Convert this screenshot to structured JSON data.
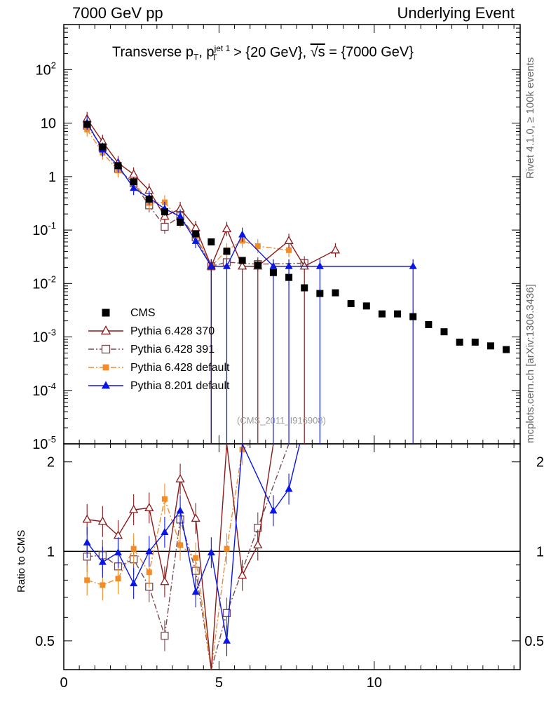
{
  "header": {
    "left": "7000 GeV pp",
    "right": "Underlying Event"
  },
  "side_labels": {
    "rivet": "Rivet 4.1.0, ≥ 100k events",
    "mcplots": "mcplots.cern.ch [arXiv:1306.3436]"
  },
  "title": {
    "prefix": "Transverse p",
    "sub_t": "T",
    "sep": ", p",
    "sup_jet": "jet 1",
    "sub_t2": "T",
    "cut": " > {20 GeV}, ",
    "sqrt": "√s",
    "energy": " = {7000 GeV}"
  },
  "watermark": "(CMS_2011_I916908)",
  "ratio_ylabel": "Ratio to CMS",
  "colors": {
    "cms": "#000000",
    "p370": "#8b1a1a",
    "p391": "#7a4a52",
    "pdefault": "#f28c28",
    "p8": "#0a16e6"
  },
  "chart_data": {
    "type": "scatter",
    "title": "Transverse pT, pT jet 1 > {20 GeV}, √s = {7000 GeV}",
    "xlabel": "",
    "xlim": [
      0,
      14.7
    ],
    "main_ylim": [
      1e-05,
      700
    ],
    "main_yscale": "log",
    "ratio_ylim": [
      0.4,
      2.3
    ],
    "ratio_ylabel": "Ratio to CMS",
    "x_ticks": [
      "0",
      "5",
      "10"
    ],
    "main_y_ticks": [
      "10^-5",
      "10^-4",
      "10^-3",
      "10^-2",
      "10^-1",
      "1",
      "10",
      "10^2"
    ],
    "ratio_y_ticks": [
      "0.5",
      "1",
      "2"
    ],
    "ratio_y_ticks_right": [
      "0.5",
      "1",
      "2"
    ],
    "legend": [
      "CMS",
      "Pythia 6.428 370",
      "Pythia 6.428 391",
      "Pythia 6.428 default",
      "Pythia 8.201 default"
    ],
    "legend_position": "lower-left",
    "series": [
      {
        "name": "CMS",
        "key": "cms",
        "marker": "square",
        "line": "none",
        "x": [
          0.75,
          1.25,
          1.75,
          2.25,
          2.75,
          3.25,
          3.75,
          4.25,
          4.75,
          5.25,
          5.75,
          6.25,
          6.75,
          7.25,
          7.75,
          8.25,
          8.75,
          9.25,
          9.75,
          10.25,
          10.75,
          11.25,
          11.75,
          12.25,
          12.75,
          13.25,
          13.75,
          14.25
        ],
        "y": [
          9.5,
          3.6,
          1.6,
          0.8,
          0.38,
          0.22,
          0.14,
          0.085,
          0.06,
          0.04,
          0.027,
          0.022,
          0.016,
          0.013,
          0.0083,
          0.0065,
          0.0067,
          0.0042,
          0.0038,
          0.0027,
          0.0027,
          0.0024,
          0.0017,
          0.00125,
          0.0008,
          0.0008,
          0.00068,
          0.00058
        ]
      },
      {
        "name": "Pythia 6.428 370",
        "key": "p370",
        "marker": "triangle-open",
        "line": "solid",
        "x": [
          0.75,
          1.25,
          1.75,
          2.25,
          2.75,
          3.25,
          3.75,
          4.25,
          4.75,
          5.25,
          5.75,
          6.25,
          7.25,
          7.75,
          8.75
        ],
        "y": [
          12,
          4.5,
          1.8,
          1.1,
          0.55,
          0.18,
          0.25,
          0.11,
          0.021,
          0.105,
          0.021,
          0.021,
          0.063,
          0.021,
          0.042
        ]
      },
      {
        "name": "Pythia 6.428 391",
        "key": "p391",
        "marker": "square-open",
        "line": "dashdot",
        "x": [
          0.75,
          1.25,
          1.75,
          2.25,
          2.75,
          3.25,
          3.75,
          4.25,
          4.75,
          5.25,
          6.25,
          7.75
        ],
        "y": [
          9.0,
          3.5,
          1.4,
          0.75,
          0.29,
          0.115,
          0.18,
          0.073,
          0.021,
          0.025,
          0.023,
          0.024
        ]
      },
      {
        "name": "Pythia 6.428 default",
        "key": "pdefault",
        "marker": "square-filled",
        "line": "dashdot",
        "x": [
          0.75,
          1.25,
          1.75,
          2.25,
          2.75,
          3.25,
          3.75,
          4.25,
          4.75,
          5.25,
          5.75,
          6.25,
          7.25
        ],
        "y": [
          7.6,
          2.8,
          1.3,
          0.82,
          0.32,
          0.33,
          0.15,
          0.08,
          0.021,
          0.042,
          0.063,
          0.05,
          0.042
        ]
      },
      {
        "name": "Pythia 8.201 default",
        "key": "p8",
        "marker": "triangle-filled",
        "line": "solid",
        "x": [
          0.75,
          1.25,
          1.75,
          2.25,
          2.75,
          3.25,
          3.75,
          4.25,
          4.75,
          5.25,
          5.75,
          6.75,
          7.25,
          8.25,
          11.25
        ],
        "y": [
          10.2,
          3.2,
          1.6,
          0.61,
          0.4,
          0.25,
          0.18,
          0.062,
          0.021,
          0.021,
          0.082,
          0.021,
          0.021,
          0.021,
          0.021
        ]
      }
    ],
    "ratio_series": [
      {
        "key": "p370",
        "x": [
          0.75,
          1.25,
          1.75,
          2.25,
          2.75,
          3.25,
          3.75,
          4.25,
          4.75,
          5.25,
          5.75,
          6.25,
          6.75
        ],
        "y": [
          1.28,
          1.26,
          1.13,
          1.38,
          1.4,
          0.79,
          1.75,
          1.29,
          0.35,
          2.6,
          0.83,
          1.05,
          2.5
        ]
      },
      {
        "key": "p391",
        "x": [
          0.75,
          1.25,
          1.75,
          2.25,
          2.75,
          3.25,
          3.75,
          4.25,
          4.75,
          5.25,
          6.25,
          7.25
        ],
        "y": [
          0.96,
          0.97,
          0.89,
          0.94,
          0.76,
          0.52,
          1.28,
          0.86,
          0.35,
          0.62,
          1.2,
          2.5
        ]
      },
      {
        "key": "pdefault",
        "x": [
          0.75,
          1.25,
          1.75,
          2.25,
          2.75,
          3.25,
          3.75,
          4.25,
          4.75,
          5.25,
          5.75,
          6.0
        ],
        "y": [
          0.8,
          0.77,
          0.81,
          1.02,
          0.85,
          1.5,
          1.05,
          0.95,
          0.35,
          1.02,
          2.2,
          2.5
        ]
      },
      {
        "key": "p8",
        "x": [
          0.75,
          1.25,
          1.75,
          2.25,
          2.75,
          3.25,
          3.75,
          4.25,
          4.75,
          5.25,
          5.75,
          6.75,
          7.25,
          7.6
        ],
        "y": [
          1.07,
          0.92,
          0.99,
          0.78,
          1.0,
          1.16,
          1.37,
          0.73,
          0.99,
          0.5,
          2.5,
          1.37,
          1.62,
          2.5
        ]
      }
    ]
  },
  "legend_labels": {
    "cms": "CMS",
    "p370": "Pythia 6.428 370",
    "p391": "Pythia 6.428 391",
    "pdefault": "Pythia 6.428 default",
    "p8": "Pythia 8.201 default"
  }
}
